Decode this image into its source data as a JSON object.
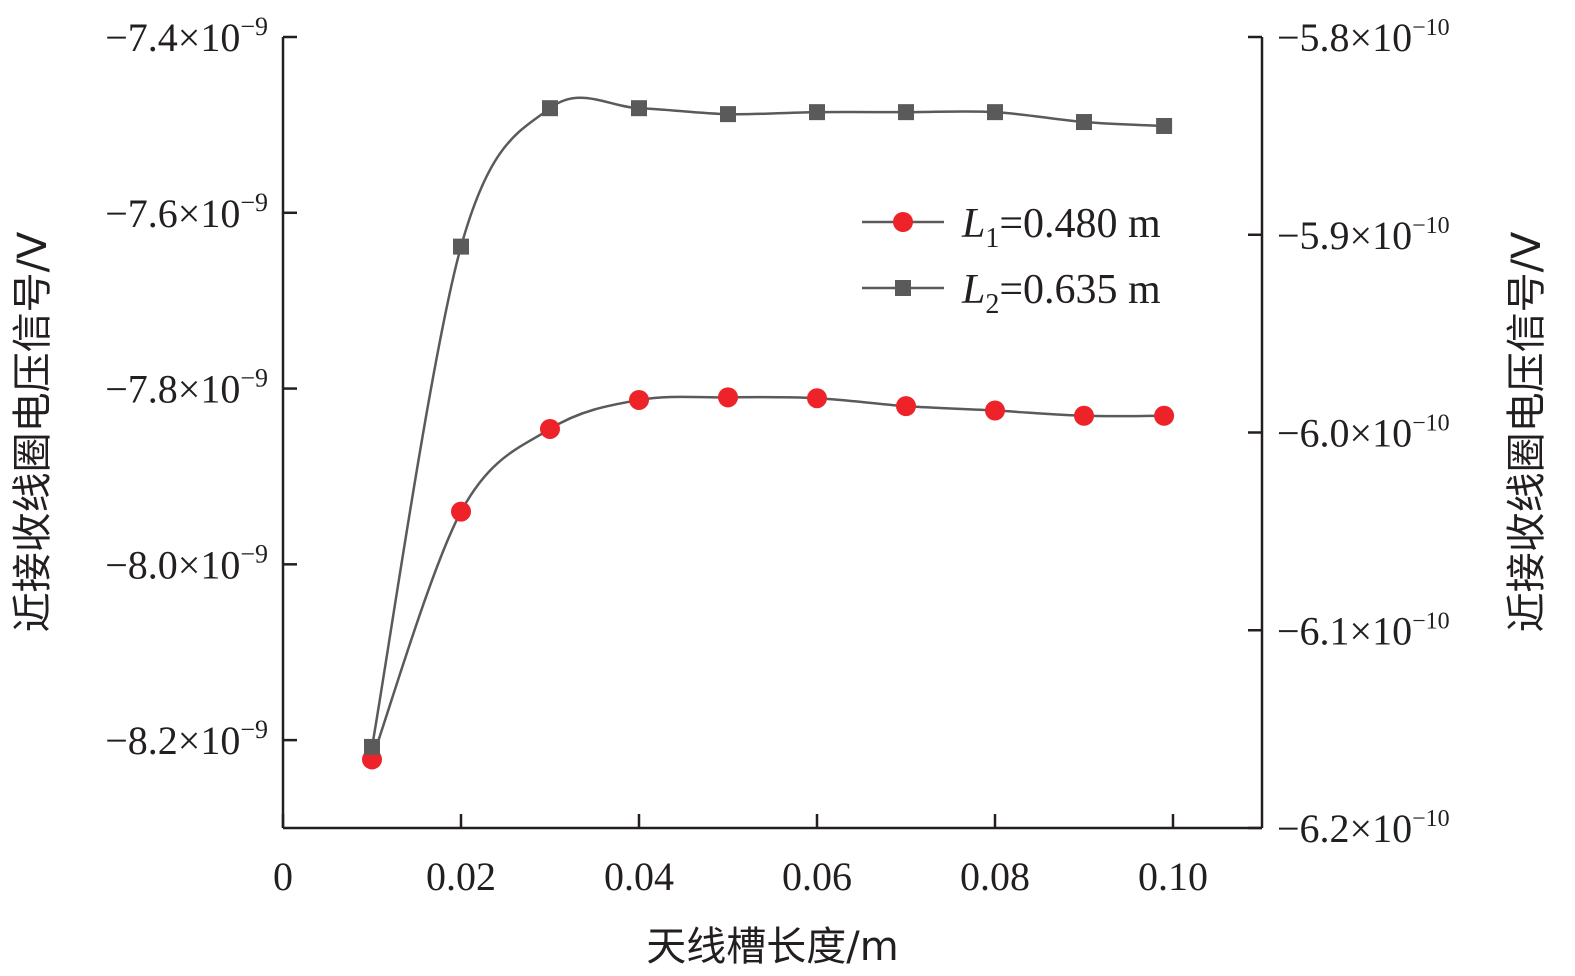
{
  "chart_data": {
    "type": "line",
    "xlabel": "天线槽长度/m",
    "ylabel_left": "近接收线圈电压信号/V",
    "ylabel_right": "近接收线圈电压信号/V",
    "xlim": [
      0,
      0.11
    ],
    "x_ticks": [
      0,
      0.02,
      0.04,
      0.06,
      0.08,
      0.1
    ],
    "x_tick_labels": [
      "0",
      "0.02",
      "0.04",
      "0.06",
      "0.08",
      "0.10"
    ],
    "ylim_left": [
      -8.3,
      -7.4
    ],
    "y_left_ticks": [
      -7.4,
      -7.6,
      -7.8,
      -8.0,
      -8.2
    ],
    "y_left_tick_mantissas": [
      "−7.4",
      "−7.6",
      "−7.8",
      "−8.0",
      "−8.2"
    ],
    "y_left_exponent": "−9",
    "ylim_right": [
      -6.2,
      -5.8
    ],
    "y_right_ticks": [
      -5.8,
      -5.9,
      -6.0,
      -6.1,
      -6.2
    ],
    "y_right_tick_mantissas": [
      "−5.8",
      "−5.9",
      "−6.0",
      "−6.1",
      "−6.2"
    ],
    "y_right_exponent": "−10",
    "times_sign": "×10",
    "series": [
      {
        "name": "L1=0.480 m",
        "legend_var": "L",
        "legend_sub": "1",
        "legend_value": "=0.480 m",
        "axis": "left",
        "unit_scale": "1e-9",
        "marker": "circle",
        "color": "#ee2229",
        "line_color": "#5a5a5a",
        "x": [
          0.01,
          0.02,
          0.03,
          0.04,
          0.05,
          0.06,
          0.07,
          0.08,
          0.09,
          0.099
        ],
        "values": [
          -8.222,
          -7.94,
          -7.846,
          -7.813,
          -7.81,
          -7.811,
          -7.82,
          -7.825,
          -7.831,
          -7.831
        ]
      },
      {
        "name": "L2=0.635 m",
        "legend_var": "L",
        "legend_sub": "2",
        "legend_value": "=0.635 m",
        "axis": "right",
        "unit_scale": "1e-10",
        "marker": "square",
        "color": "#5a5a5a",
        "line_color": "#5a5a5a",
        "x": [
          0.01,
          0.02,
          0.03,
          0.04,
          0.05,
          0.06,
          0.07,
          0.08,
          0.09,
          0.099
        ],
        "values": [
          -6.159,
          -5.906,
          -5.836,
          -5.836,
          -5.839,
          -5.838,
          -5.838,
          -5.838,
          -5.843,
          -5.845
        ]
      }
    ]
  }
}
